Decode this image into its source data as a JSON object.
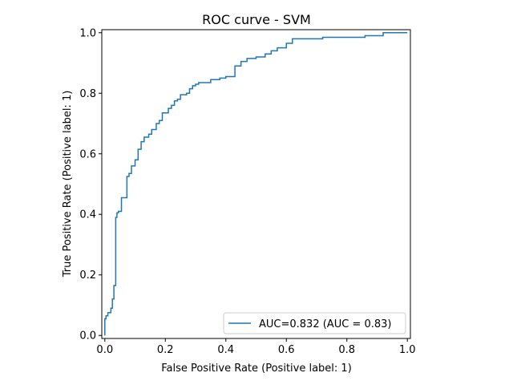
{
  "chart_data": {
    "type": "line",
    "title": "ROC curve - SVM",
    "xlabel": "False Positive Rate (Positive label: 1)",
    "ylabel": "True Positive Rate (Positive label: 1)",
    "xlim": [
      -0.01,
      1.01
    ],
    "ylim": [
      -0.01,
      1.01
    ],
    "xticks": [
      0.0,
      0.2,
      0.4,
      0.6,
      0.8,
      1.0
    ],
    "yticks": [
      0.0,
      0.2,
      0.4,
      0.6,
      0.8,
      1.0
    ],
    "xtick_labels": [
      "0.0",
      "0.2",
      "0.4",
      "0.6",
      "0.8",
      "1.0"
    ],
    "ytick_labels": [
      "0.0",
      "0.2",
      "0.4",
      "0.6",
      "0.8",
      "1.0"
    ],
    "grid": false,
    "legend_position": "bottom-right",
    "step": true,
    "series": [
      {
        "name": "AUC=0.832 (AUC = 0.83)",
        "color": "#1f77b4",
        "x": [
          0.0,
          0.0,
          0.004,
          0.004,
          0.01,
          0.01,
          0.02,
          0.02,
          0.025,
          0.025,
          0.03,
          0.03,
          0.036,
          0.036,
          0.04,
          0.04,
          0.045,
          0.045,
          0.055,
          0.055,
          0.073,
          0.073,
          0.08,
          0.08,
          0.088,
          0.088,
          0.1,
          0.1,
          0.11,
          0.11,
          0.12,
          0.12,
          0.13,
          0.13,
          0.145,
          0.145,
          0.155,
          0.155,
          0.17,
          0.17,
          0.18,
          0.18,
          0.19,
          0.19,
          0.21,
          0.21,
          0.22,
          0.22,
          0.23,
          0.23,
          0.24,
          0.24,
          0.25,
          0.25,
          0.27,
          0.27,
          0.28,
          0.28,
          0.29,
          0.29,
          0.3,
          0.3,
          0.31,
          0.31,
          0.35,
          0.35,
          0.38,
          0.38,
          0.4,
          0.4,
          0.43,
          0.43,
          0.45,
          0.45,
          0.47,
          0.47,
          0.5,
          0.5,
          0.53,
          0.53,
          0.55,
          0.55,
          0.57,
          0.57,
          0.6,
          0.6,
          0.62,
          0.62,
          0.72,
          0.72,
          0.86,
          0.86,
          0.92,
          0.92,
          1.0
        ],
        "y": [
          0.0,
          0.055,
          0.055,
          0.065,
          0.065,
          0.075,
          0.075,
          0.09,
          0.09,
          0.12,
          0.12,
          0.165,
          0.165,
          0.39,
          0.39,
          0.405,
          0.405,
          0.41,
          0.41,
          0.455,
          0.455,
          0.525,
          0.525,
          0.535,
          0.535,
          0.56,
          0.56,
          0.58,
          0.58,
          0.615,
          0.615,
          0.64,
          0.64,
          0.655,
          0.655,
          0.665,
          0.665,
          0.68,
          0.68,
          0.7,
          0.7,
          0.71,
          0.71,
          0.735,
          0.735,
          0.75,
          0.75,
          0.76,
          0.76,
          0.775,
          0.775,
          0.78,
          0.78,
          0.795,
          0.795,
          0.8,
          0.8,
          0.815,
          0.815,
          0.825,
          0.825,
          0.83,
          0.83,
          0.835,
          0.835,
          0.845,
          0.845,
          0.85,
          0.85,
          0.855,
          0.855,
          0.89,
          0.89,
          0.905,
          0.905,
          0.915,
          0.915,
          0.92,
          0.92,
          0.93,
          0.93,
          0.94,
          0.94,
          0.95,
          0.95,
          0.965,
          0.965,
          0.98,
          0.98,
          0.985,
          0.985,
          0.99,
          0.99,
          1.0,
          1.0
        ]
      }
    ]
  }
}
